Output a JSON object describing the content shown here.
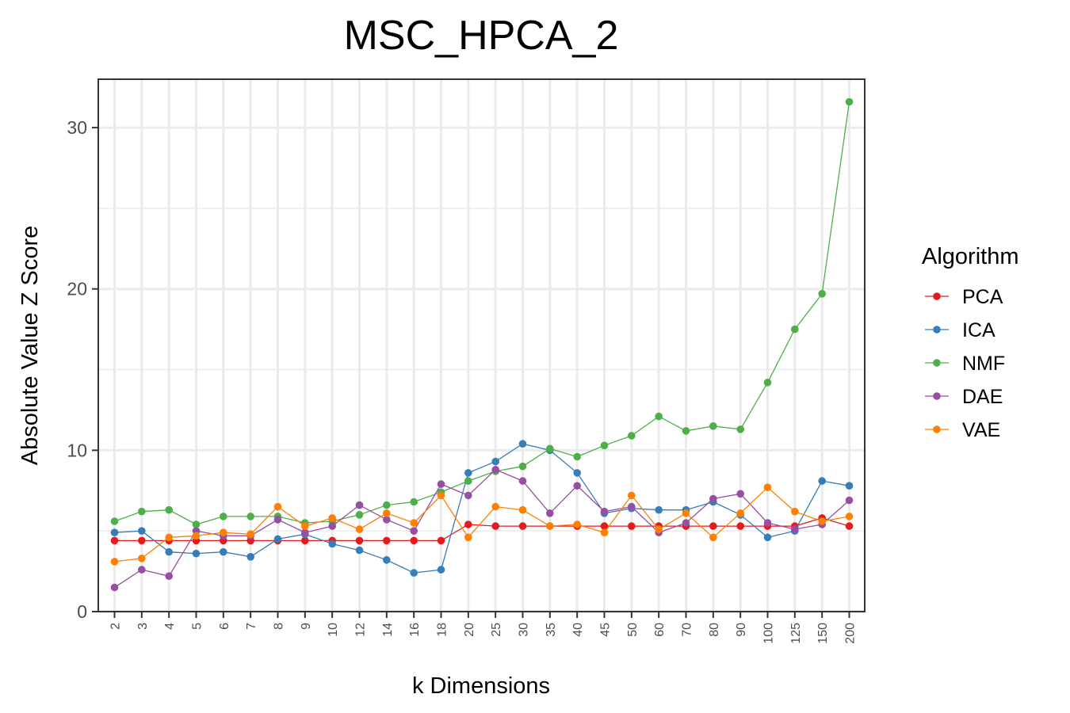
{
  "chart_data": {
    "type": "line",
    "title": "MSC_HPCA_2",
    "xlabel": "k Dimensions",
    "ylabel": "Absolute Value Z Score",
    "categories": [
      "2",
      "3",
      "4",
      "5",
      "6",
      "7",
      "8",
      "9",
      "10",
      "12",
      "14",
      "16",
      "18",
      "20",
      "25",
      "30",
      "35",
      "40",
      "45",
      "50",
      "60",
      "70",
      "80",
      "90",
      "100",
      "125",
      "150",
      "200"
    ],
    "ylim": [
      0,
      33
    ],
    "yticks": [
      0,
      10,
      20,
      30
    ],
    "grid": true,
    "legend": {
      "title": "Algorithm",
      "position": "right"
    },
    "series": [
      {
        "name": "PCA",
        "color": "#E41A1C",
        "values": [
          4.4,
          4.4,
          4.4,
          4.4,
          4.4,
          4.4,
          4.4,
          4.4,
          4.4,
          4.4,
          4.4,
          4.4,
          4.4,
          5.4,
          5.3,
          5.3,
          5.3,
          5.3,
          5.3,
          5.3,
          5.3,
          5.3,
          5.3,
          5.3,
          5.3,
          5.3,
          5.8,
          5.3
        ]
      },
      {
        "name": "ICA",
        "color": "#377EB8",
        "values": [
          4.9,
          5.0,
          3.7,
          3.6,
          3.7,
          3.4,
          4.5,
          4.8,
          4.2,
          3.8,
          3.2,
          2.4,
          2.6,
          8.6,
          9.3,
          10.4,
          10.0,
          8.6,
          6.1,
          6.4,
          6.3,
          6.3,
          6.8,
          6.0,
          4.6,
          5.0,
          8.1,
          7.8
        ]
      },
      {
        "name": "NMF",
        "color": "#4DAF4A",
        "values": [
          5.6,
          6.2,
          6.3,
          5.4,
          5.9,
          5.9,
          5.9,
          5.5,
          5.6,
          6.0,
          6.6,
          6.8,
          7.4,
          8.1,
          8.7,
          9.0,
          10.1,
          9.6,
          10.3,
          10.9,
          12.1,
          11.2,
          11.5,
          11.3,
          14.2,
          17.5,
          19.7,
          31.6
        ]
      },
      {
        "name": "DAE",
        "color": "#984EA3",
        "values": [
          1.5,
          2.6,
          2.2,
          5.0,
          4.7,
          4.7,
          5.7,
          4.9,
          5.3,
          6.6,
          5.7,
          5.0,
          7.9,
          7.2,
          8.8,
          8.1,
          6.1,
          7.8,
          6.2,
          6.5,
          4.9,
          5.5,
          7.0,
          7.3,
          5.5,
          5.1,
          5.4,
          6.9
        ]
      },
      {
        "name": "VAE",
        "color": "#FF7F00",
        "values": [
          3.1,
          3.3,
          4.6,
          4.7,
          4.9,
          4.8,
          6.5,
          5.3,
          5.8,
          5.1,
          6.1,
          5.5,
          7.2,
          4.6,
          6.5,
          6.3,
          5.3,
          5.4,
          4.9,
          7.2,
          5.1,
          6.1,
          4.6,
          6.1,
          7.7,
          6.2,
          5.6,
          5.9
        ]
      }
    ]
  }
}
